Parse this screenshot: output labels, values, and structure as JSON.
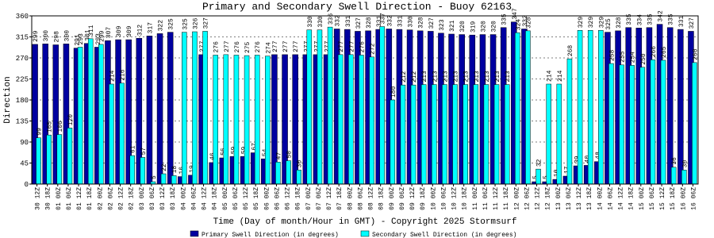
{
  "chart_data": {
    "type": "bar",
    "title": "Primary and Secondary Swell Direction - Buoy 62163",
    "x_label": "Time (Day of month/Hour in GMT) - Copyright 2025 Stormsurf",
    "y_label": "Direction",
    "categories": [
      "30 12Z",
      "30 18Z",
      "01 00Z",
      "01 06Z",
      "01 12Z",
      "01 18Z",
      "02 00Z",
      "02 06Z",
      "02 12Z",
      "02 18Z",
      "03 00Z",
      "03 06Z",
      "03 12Z",
      "03 18Z",
      "04 00Z",
      "04 06Z",
      "04 12Z",
      "04 18Z",
      "05 00Z",
      "05 06Z",
      "05 12Z",
      "05 18Z",
      "06 00Z",
      "06 06Z",
      "06 12Z",
      "06 18Z",
      "07 00Z",
      "07 06Z",
      "07 12Z",
      "07 18Z",
      "08 00Z",
      "08 06Z",
      "08 12Z",
      "08 18Z",
      "09 00Z",
      "09 06Z",
      "09 12Z",
      "09 18Z",
      "10 00Z",
      "10 06Z",
      "10 12Z",
      "10 18Z",
      "11 00Z",
      "11 06Z",
      "11 12Z",
      "11 18Z",
      "12 00Z",
      "12 06Z",
      "12 12Z",
      "12 18Z",
      "13 00Z",
      "13 06Z",
      "13 12Z",
      "13 18Z",
      "14 00Z",
      "14 06Z",
      "14 12Z",
      "14 18Z",
      "15 00Z",
      "15 06Z",
      "15 12Z",
      "15 18Z",
      "16 00Z",
      "16 06Z"
    ],
    "series": [
      {
        "name": "Primary Swell Direction (in degrees)",
        "color": "#0000a0",
        "values": [
          299,
          300,
          298,
          300,
          291,
          301,
          293,
          307,
          309,
          309,
          312,
          317,
          322,
          325,
          16,
          19,
          277,
          46,
          56,
          59,
          59,
          67,
          54,
          277,
          277,
          277,
          277,
          277,
          277,
          332,
          331,
          327,
          328,
          331,
          332,
          331,
          330,
          328,
          327,
          323,
          321,
          320,
          319,
          320,
          320,
          335,
          347,
          332,
          5,
          5,
          10,
          17,
          39,
          40,
          48,
          325,
          328,
          335,
          334,
          335,
          342,
          335,
          331,
          327
        ]
      },
      {
        "name": "Secondary Swell Direction (in degrees)",
        "color": "#00ffff",
        "values": [
          99,
          105,
          106,
          120,
          293,
          311,
          299,
          214,
          216,
          61,
          57,
          5,
          22,
          18,
          325,
          326,
          327,
          276,
          277,
          276,
          275,
          276,
          274,
          47,
          50,
          30,
          330,
          330,
          336,
          277,
          277,
          276,
          272,
          337,
          180,
          212,
          212,
          213,
          213,
          213,
          213,
          213,
          213,
          213,
          213,
          213,
          324,
          328,
          32,
          214,
          214,
          268,
          329,
          329,
          329,
          258,
          255,
          254,
          250,
          266,
          265,
          36,
          30,
          260
        ]
      }
    ],
    "ylim": [
      0,
      360
    ],
    "yticks": [
      0,
      45,
      90,
      135,
      180,
      225,
      270,
      315,
      360
    ],
    "grid": true
  }
}
